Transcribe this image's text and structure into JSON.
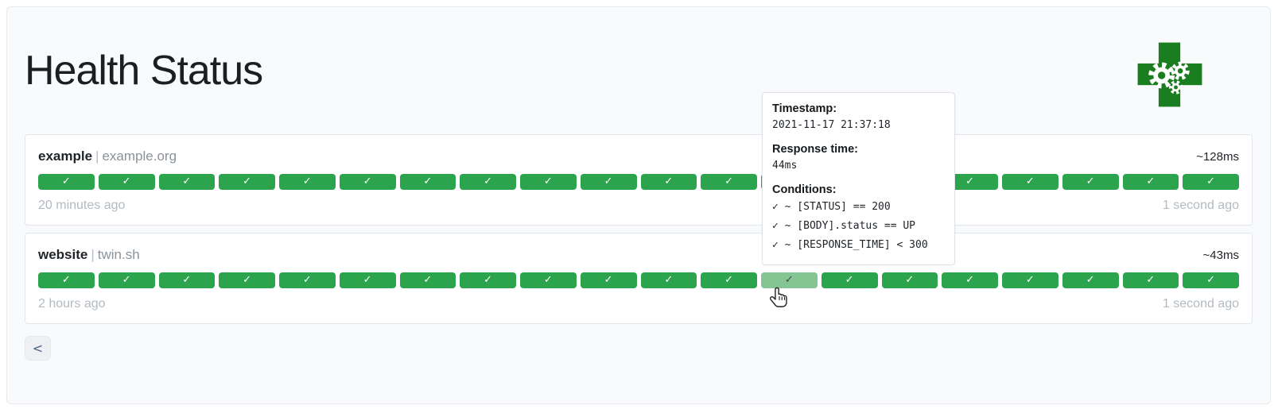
{
  "page": {
    "title": "Health Status"
  },
  "logo": {
    "name": "green-cross-with-gears",
    "color": "#1a7d1f"
  },
  "colors": {
    "bar_success": "#2ca44d",
    "bar_success_hover": "#85c493",
    "container_bg": "#f9fafb",
    "muted_text": "#b3bac1"
  },
  "glyphs": {
    "check": "✓",
    "separator": "|"
  },
  "services": [
    {
      "name": "example",
      "hostname": "example.org",
      "response_time": "~128ms",
      "oldest": "20 minutes ago",
      "newest": "1 second ago",
      "bars": [
        "up",
        "up",
        "up",
        "up",
        "up",
        "up",
        "up",
        "up",
        "up",
        "up",
        "up",
        "up",
        "up",
        "up",
        "up",
        "up",
        "up",
        "up",
        "up",
        "up"
      ],
      "hovered_index": -1
    },
    {
      "name": "website",
      "hostname": "twin.sh",
      "response_time": "~43ms",
      "oldest": "2 hours ago",
      "newest": "1 second ago",
      "bars": [
        "up",
        "up",
        "up",
        "up",
        "up",
        "up",
        "up",
        "up",
        "up",
        "up",
        "up",
        "up",
        "up",
        "up",
        "up",
        "up",
        "up",
        "up",
        "up",
        "up"
      ],
      "hovered_index": 12
    }
  ],
  "tooltip": {
    "timestamp_label": "Timestamp:",
    "timestamp": "2021-11-17 21:37:18",
    "response_time_label": "Response time:",
    "response_time": "44ms",
    "conditions_label": "Conditions:",
    "conditions": [
      "✓ ~ [STATUS] == 200",
      "✓ ~ [BODY].status == UP",
      "✓ ~ [RESPONSE_TIME] < 300"
    ]
  },
  "pagination": {
    "prev_label": "<"
  }
}
